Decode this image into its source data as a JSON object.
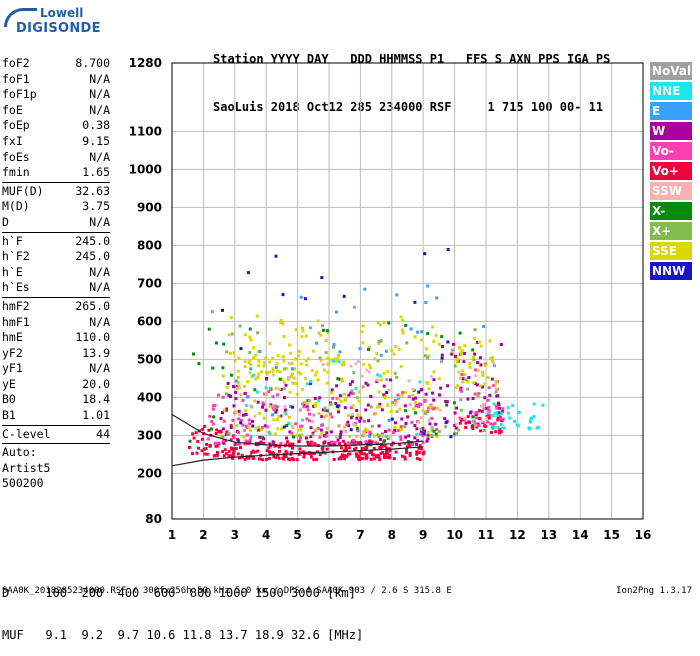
{
  "logo": {
    "line1": "Lowell",
    "line2": "DIGISONDE"
  },
  "header": {
    "line1": "Station YYYY DAY   DDD HHMMSS P1   FFS S AXN PPS IGA PS",
    "line2": "SaoLuis 2018 Oct12 285 234000 RSF     1 715 100 00- 11"
  },
  "params": [
    [
      [
        "foF2",
        "8.700"
      ],
      [
        "foF1",
        "N/A"
      ],
      [
        "foF1p",
        "N/A"
      ],
      [
        "foE",
        "N/A"
      ],
      [
        "foEp",
        "0.38"
      ],
      [
        "fxI",
        "9.15"
      ],
      [
        "foEs",
        "N/A"
      ],
      [
        "fmin",
        "1.65"
      ]
    ],
    [
      [
        "MUF(D)",
        "32.63"
      ],
      [
        "M(D)",
        "3.75"
      ],
      [
        "D",
        "N/A"
      ]
    ],
    [
      [
        "h`F",
        "245.0"
      ],
      [
        "h`F2",
        "245.0"
      ],
      [
        "h`E",
        "N/A"
      ],
      [
        "h`Es",
        "N/A"
      ]
    ],
    [
      [
        "hmF2",
        "265.0"
      ],
      [
        "hmF1",
        "N/A"
      ],
      [
        "hmE",
        "110.0"
      ],
      [
        "yF2",
        "13.9"
      ],
      [
        "yF1",
        "N/A"
      ],
      [
        "yE",
        "20.0"
      ],
      [
        "B0",
        "18.4"
      ],
      [
        "B1",
        "1.01"
      ]
    ],
    [
      [
        "C-level",
        "44"
      ]
    ],
    [
      [
        "Auto:",
        ""
      ],
      [
        "Artist5",
        ""
      ],
      [
        "500200",
        ""
      ]
    ]
  ],
  "legend": [
    {
      "label": "NoVal",
      "color": "#a0a0a0"
    },
    {
      "label": "NNE",
      "color": "#19e6f0"
    },
    {
      "label": "E",
      "color": "#3aa0ff"
    },
    {
      "label": "W",
      "color": "#a8009c"
    },
    {
      "label": "Vo-",
      "color": "#ff40b0"
    },
    {
      "label": "Vo+",
      "color": "#f0003c"
    },
    {
      "label": "SSW",
      "color": "#f8b0b0"
    },
    {
      "label": "X-",
      "color": "#0a8a0a"
    },
    {
      "label": "X+",
      "color": "#80bc50"
    },
    {
      "label": "SSE",
      "color": "#d8d800"
    },
    {
      "label": "NNW",
      "color": "#1a14c8"
    }
  ],
  "bottom": {
    "line1": "D     100  200  400  600  800 1000 1500 3000 [km]",
    "line2": "MUF   9.1  9.2  9.7 10.6 11.8 13.7 18.9 32.6 [MHz]"
  },
  "footer": "SAA0K_2018285234000.RSF / 300fx256h 50 kHz 5.0 km / DPS-4 SAA0K 903 / 2.6 S 315.8 E",
  "version": "Ion2Png 1.3.17",
  "chart_data": {
    "type": "scatter",
    "title": "",
    "xlabel": "",
    "ylabel": "",
    "xlim": [
      1,
      16
    ],
    "ylim": [
      80,
      1280
    ],
    "x_ticks": [
      1,
      2,
      3,
      4,
      5,
      6,
      7,
      8,
      9,
      10,
      11,
      12,
      13,
      14,
      15,
      16
    ],
    "y_ticks": [
      80,
      200,
      300,
      400,
      500,
      600,
      700,
      800,
      900,
      1000,
      1100,
      1280
    ],
    "grid": true,
    "legend_position": "right",
    "series": [
      {
        "name": "Vo+",
        "color": "#f0003c",
        "clusters": [
          [
            2.8,
            9.0,
            240,
            290,
            240
          ],
          [
            1.5,
            3.0,
            250,
            330,
            50
          ],
          [
            10.0,
            11.5,
            310,
            370,
            40
          ]
        ]
      },
      {
        "name": "W",
        "color": "#a8009c",
        "clusters": [
          [
            2.5,
            9.5,
            280,
            460,
            160
          ],
          [
            9.5,
            11.5,
            330,
            560,
            50
          ]
        ]
      },
      {
        "name": "Vo-",
        "color": "#ff40b0",
        "clusters": [
          [
            2.0,
            9.5,
            280,
            420,
            120
          ],
          [
            10.0,
            11.5,
            330,
            500,
            30
          ]
        ]
      },
      {
        "name": "SSE",
        "color": "#d8d800",
        "clusters": [
          [
            2.5,
            9.5,
            300,
            620,
            200
          ],
          [
            3.0,
            6.5,
            440,
            520,
            60
          ],
          [
            10.0,
            11.3,
            420,
            560,
            40
          ]
        ]
      },
      {
        "name": "NNE",
        "color": "#19e6f0",
        "clusters": [
          [
            11.0,
            12.8,
            320,
            400,
            30
          ],
          [
            3.0,
            9.0,
            300,
            500,
            20
          ]
        ]
      },
      {
        "name": "E",
        "color": "#3aa0ff",
        "clusters": [
          [
            3.0,
            11.0,
            300,
            700,
            30
          ]
        ]
      },
      {
        "name": "X-",
        "color": "#0a8a0a",
        "clusters": [
          [
            1.5,
            11.0,
            280,
            600,
            40
          ]
        ]
      },
      {
        "name": "X+",
        "color": "#80bc50",
        "clusters": [
          [
            2.0,
            11.0,
            300,
            600,
            50
          ]
        ]
      },
      {
        "name": "NNW",
        "color": "#1a14c8",
        "clusters": [
          [
            2.5,
            10.0,
            300,
            800,
            25
          ]
        ]
      },
      {
        "name": "SSW",
        "color": "#f8b0b0",
        "clusters": [
          [
            2.5,
            11.0,
            300,
            500,
            40
          ]
        ]
      },
      {
        "name": "NoVal",
        "color": "#a0a0a0",
        "clusters": [
          [
            2.0,
            11.5,
            300,
            700,
            25
          ]
        ]
      }
    ],
    "curves": [
      {
        "name": "profile-lower",
        "color": "#222222",
        "x": [
          1.0,
          2.0,
          3.0,
          4.0,
          5.0,
          6.0,
          7.0,
          8.0,
          9.0
        ],
        "y": [
          220,
          235,
          243,
          248,
          252,
          256,
          260,
          264,
          270
        ]
      },
      {
        "name": "profile-upper",
        "color": "#222222",
        "x": [
          1.0,
          1.5,
          2.0,
          3.0,
          4.0,
          5.0,
          6.0,
          7.0,
          8.0,
          9.0
        ],
        "y": [
          355,
          330,
          305,
          282,
          275,
          272,
          272,
          275,
          278,
          285
        ]
      }
    ]
  }
}
